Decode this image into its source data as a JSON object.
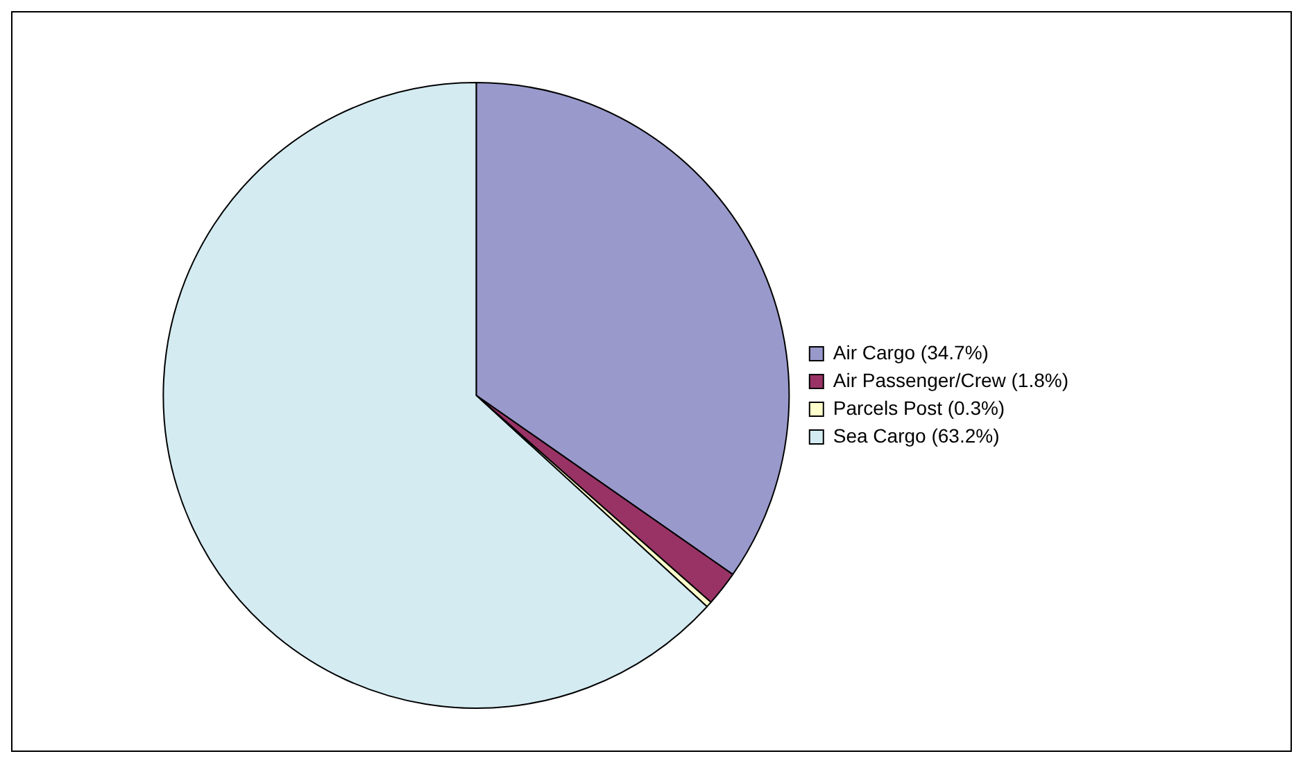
{
  "chart_data": {
    "type": "pie",
    "categories": [
      "Air Cargo (34.7%)",
      "Air Passenger/Crew (1.8%)",
      "Parcels Post (0.3%)",
      "Sea Cargo (63.2%)"
    ],
    "values": [
      34.7,
      1.8,
      0.3,
      63.2
    ],
    "colors": [
      "#9999cc",
      "#993366",
      "#ffffcc",
      "#d4ebf2"
    ],
    "legend": "right"
  }
}
